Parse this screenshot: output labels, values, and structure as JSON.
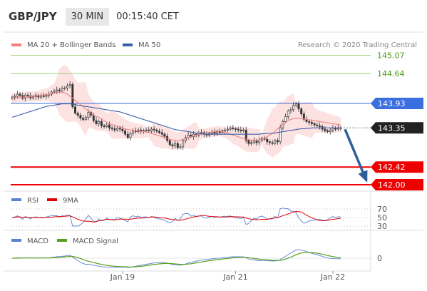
{
  "header": {
    "symbol": "GBP/JPY",
    "timeframe": "30 MIN",
    "clock": "00:15:40 CET"
  },
  "legend": {
    "ma20_label": "MA 20 + Bollinger Bands",
    "ma50_label": "MA 50",
    "copyright": "Research © 2020 Trading Central"
  },
  "colors": {
    "ma20": "#f08080",
    "ma50": "#3a5fa8",
    "band": "#fde2e2",
    "green_level": "#4a9a16",
    "blue_level": "#3a6fe0",
    "red_level": "#ee0000",
    "price_badge": "#222222",
    "arrow": "#2f5f9a",
    "rsi": "#5a7fd6",
    "rsi_ma": "#e00000",
    "macd": "#5a7fd6",
    "macd_signal": "#5aa01e"
  },
  "chart_data": [
    {
      "type": "candlestick",
      "ylim": [
        141.95,
        145.2
      ],
      "x_ticks": [
        "Jan 19",
        "Jan 21",
        "Jan 22"
      ],
      "levels": [
        {
          "value": 145.07,
          "label": "145.07",
          "kind": "resistance-green"
        },
        {
          "value": 144.64,
          "label": "144.64",
          "kind": "resistance-green"
        },
        {
          "value": 143.93,
          "label": "143.93",
          "kind": "pivot-blue"
        },
        {
          "value": 143.35,
          "label": "143.35",
          "kind": "last-price"
        },
        {
          "value": 142.42,
          "label": "142.42",
          "kind": "support-red"
        },
        {
          "value": 142.0,
          "label": "142.00",
          "kind": "support-red"
        }
      ],
      "close": [
        144.08,
        144.1,
        144.15,
        144.12,
        144.05,
        144.13,
        144.11,
        144.06,
        144.09,
        144.12,
        144.08,
        144.11,
        144.1,
        144.12,
        144.15,
        144.2,
        144.22,
        144.25,
        144.23,
        144.28,
        144.3,
        144.35,
        144.38,
        143.85,
        143.7,
        143.65,
        143.58,
        143.55,
        143.6,
        143.72,
        143.65,
        143.52,
        143.45,
        143.5,
        143.4,
        143.38,
        143.42,
        143.35,
        143.33,
        143.3,
        143.34,
        143.32,
        143.28,
        143.2,
        143.12,
        143.22,
        143.28,
        143.26,
        143.3,
        143.27,
        143.29,
        143.3,
        143.28,
        143.32,
        143.3,
        143.27,
        143.24,
        143.2,
        143.15,
        143.05,
        142.95,
        142.92,
        142.98,
        142.88,
        142.9,
        143.05,
        143.12,
        143.18,
        143.14,
        143.2,
        143.18,
        143.22,
        143.24,
        143.2,
        143.18,
        143.22,
        143.25,
        143.22,
        143.26,
        143.24,
        143.28,
        143.3,
        143.32,
        143.35,
        143.33,
        143.32,
        143.3,
        143.28,
        143.3,
        143.05,
        142.98,
        143.0,
        143.04,
        143.0,
        143.06,
        143.1,
        143.08,
        143.02,
        143.0,
        142.98,
        143.05,
        143.02,
        143.35,
        143.5,
        143.62,
        143.75,
        143.78,
        143.88,
        143.92,
        143.8,
        143.68,
        143.55,
        143.5,
        143.48,
        143.45,
        143.42,
        143.4,
        143.38,
        143.32,
        143.28,
        143.26,
        143.3,
        143.34,
        143.32,
        143.35,
        143.35
      ],
      "ma20": [
        144.05,
        144.06,
        144.07,
        144.07,
        144.08,
        144.08,
        144.09,
        144.09,
        144.1,
        144.1,
        144.11,
        144.12,
        144.13,
        144.14,
        144.15,
        144.16,
        144.18,
        144.19,
        144.2,
        144.2,
        144.18,
        144.15,
        144.1,
        144.06,
        144.0,
        143.95,
        143.9,
        143.85,
        143.8,
        143.75,
        143.7,
        143.65,
        143.62,
        143.6,
        143.56,
        143.52,
        143.48,
        143.45,
        143.43,
        143.41,
        143.39,
        143.37,
        143.35,
        143.33,
        143.31,
        143.3,
        143.29,
        143.28,
        143.28,
        143.27,
        143.26,
        143.25,
        143.24,
        143.22,
        143.2,
        143.18,
        143.16,
        143.14,
        143.12,
        143.1,
        143.08,
        143.06,
        143.05,
        143.05,
        143.06,
        143.08,
        143.1,
        143.12,
        143.14,
        143.16,
        143.18,
        143.2,
        143.21,
        143.22,
        143.23,
        143.24,
        143.25,
        143.26,
        143.27,
        143.27,
        143.26,
        143.24,
        143.22,
        143.2,
        143.18,
        143.16,
        143.14,
        143.12,
        143.1,
        143.08,
        143.07,
        143.06,
        143.05,
        143.05,
        143.06,
        143.08,
        143.1,
        143.14,
        143.18,
        143.22,
        143.27,
        143.33,
        143.38,
        143.43,
        143.48,
        143.52,
        143.55,
        143.57,
        143.58,
        143.58,
        143.57,
        143.56,
        143.55,
        143.54,
        143.53,
        143.52,
        143.51,
        143.5,
        143.49,
        143.48,
        143.47,
        143.46,
        143.45,
        143.44,
        143.43,
        143.42
      ],
      "ma50": [
        143.6,
        143.62,
        143.64,
        143.66,
        143.68,
        143.7,
        143.72,
        143.74,
        143.76,
        143.78,
        143.8,
        143.82,
        143.84,
        143.86,
        143.87,
        143.88,
        143.89,
        143.9,
        143.91,
        143.92,
        143.92,
        143.92,
        143.92,
        143.91,
        143.9,
        143.89,
        143.88,
        143.87,
        143.86,
        143.85,
        143.84,
        143.83,
        143.82,
        143.81,
        143.8,
        143.79,
        143.78,
        143.77,
        143.76,
        143.75,
        143.74,
        143.73,
        143.71,
        143.69,
        143.67,
        143.65,
        143.63,
        143.61,
        143.59,
        143.57,
        143.55,
        143.53,
        143.51,
        143.49,
        143.47,
        143.45,
        143.43,
        143.41,
        143.39,
        143.37,
        143.35,
        143.33,
        143.31,
        143.3,
        143.29,
        143.28,
        143.27,
        143.26,
        143.25,
        143.24,
        143.23,
        143.22,
        143.21,
        143.2,
        143.2,
        143.2,
        143.2,
        143.2,
        143.2,
        143.2,
        143.2,
        143.2,
        143.2,
        143.2,
        143.2,
        143.2,
        143.2,
        143.2,
        143.2,
        143.2,
        143.2,
        143.2,
        143.2,
        143.2,
        143.2,
        143.21,
        143.21,
        143.22,
        143.22,
        143.22,
        143.23,
        143.24,
        143.25,
        143.26,
        143.27,
        143.28,
        143.29,
        143.3,
        143.31,
        143.32,
        143.33,
        143.33,
        143.34,
        143.34,
        143.35,
        143.35,
        143.35,
        143.35,
        143.35,
        143.35,
        143.35,
        143.35,
        143.35,
        143.35,
        143.35,
        143.35
      ]
    },
    {
      "type": "line",
      "series": [
        {
          "name": "RSI"
        },
        {
          "name": "9MA"
        }
      ],
      "ylim": [
        25,
        80
      ],
      "y_ticks": [
        70,
        50,
        30
      ]
    },
    {
      "type": "line",
      "series": [
        {
          "name": "MACD"
        },
        {
          "name": "MACD Signal"
        }
      ],
      "y_ticks": [
        0
      ]
    }
  ]
}
